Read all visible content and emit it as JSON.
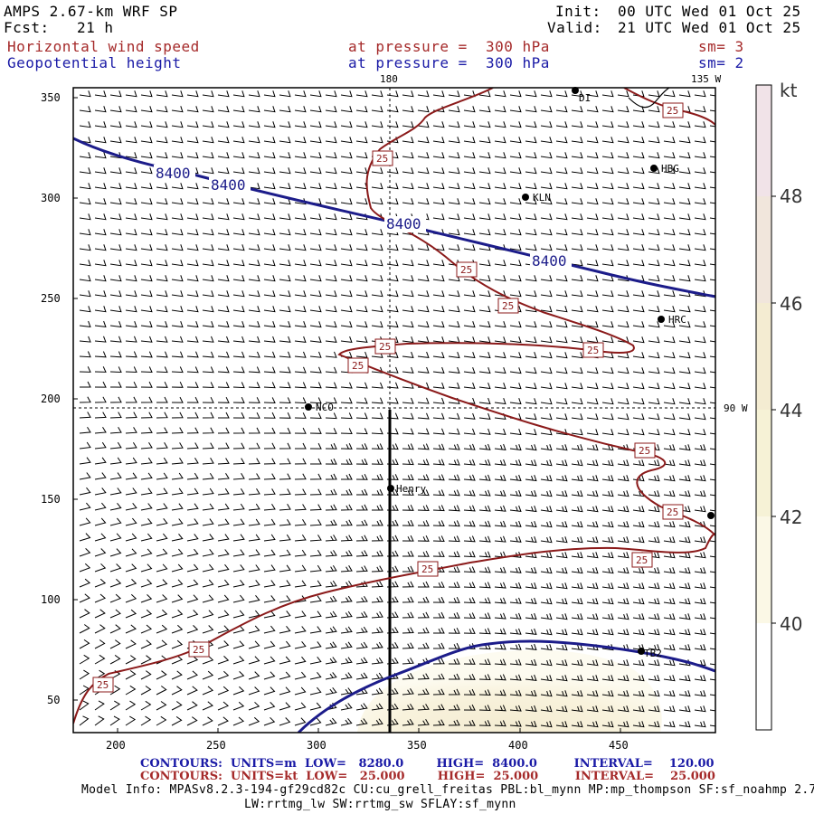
{
  "header": {
    "model": "AMPS 2.67-km WRF SP",
    "init_label": "Init:",
    "init_time": "00 UTC Wed 01 Oct 25",
    "fcst_label": "Fcst:",
    "fcst_value": "21 h",
    "valid_label": "Valid:",
    "valid_time": "21 UTC Wed 01 Oct 25",
    "field1": "Horizontal wind speed",
    "field1_level": "at pressure =  300 hPa",
    "field1_sm": "sm= 3",
    "field2": "Geopotential height",
    "field2_level": "at pressure =  300 hPa",
    "field2_sm": "sm= 2"
  },
  "map": {
    "lon_labels": {
      "top_180": "180",
      "top_135w": "135 W",
      "right_90w": "90 W"
    },
    "x_ticks": [
      "200",
      "250",
      "300",
      "350",
      "400",
      "450"
    ],
    "y_ticks": [
      "50",
      "100",
      "150",
      "200",
      "250",
      "300",
      "350"
    ],
    "stations": [
      "KLN",
      "HBG",
      "HRC",
      "NCO",
      "Henry",
      "DI",
      "TB2"
    ],
    "height_contour_label": "8400",
    "speed_contour_label": "25"
  },
  "colorbar": {
    "unit": "kt",
    "labels": [
      "48",
      "46",
      "44",
      "42",
      "40"
    ],
    "colors": [
      "#f1e3e8",
      "#f1e6dc",
      "#f4ecd2",
      "#f6f2d6",
      "#fbf8e6",
      "#ffffff"
    ]
  },
  "footer": {
    "line1": "CONTOURS:  UNITS=m  LOW=   8280.0        HIGH=  8400.0         INTERVAL=    120.00",
    "line2": "CONTOURS:  UNITS=kt  LOW=   25.000        HIGH=  25.000         INTERVAL=    25.000",
    "model_info": "Model Info: MPASv8.2.3-194-gf29cd82c CU:cu_grell_freitas PBL:bl_mynn MP:mp_thompson SF:sf_noahmp 2.7",
    "model_info2": "LW:rrtmg_lw SW:rrtmg_sw SFLAY:sf_mynn"
  },
  "colors": {
    "height_contour": "#1c1c8a",
    "speed_contour": "#8b1a1a",
    "wind_barb": "#000000"
  }
}
